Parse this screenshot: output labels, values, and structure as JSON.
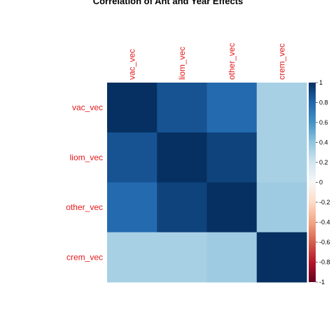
{
  "chart_data": {
    "type": "heatmap",
    "title": "Correlation of Ant and Year Effects",
    "row_labels": [
      "vac_vec",
      "liom_vec",
      "other_vec",
      "crem_vec"
    ],
    "col_labels": [
      "vac_vec",
      "liom_vec",
      "other_vec",
      "crem_vec"
    ],
    "label_color": "#e31a1c",
    "values": [
      [
        1.0,
        0.87,
        0.78,
        0.33
      ],
      [
        0.87,
        1.0,
        0.93,
        0.33
      ],
      [
        0.78,
        0.93,
        1.0,
        0.36
      ],
      [
        0.33,
        0.33,
        0.36,
        1.0
      ]
    ],
    "legend": {
      "range": [
        -1,
        1
      ],
      "ticks": [
        "1",
        "0.8",
        "0.6",
        "0.4",
        "0.2",
        "0",
        "-0.2",
        "-0.4",
        "-0.6",
        "-0.8",
        "-1"
      ],
      "placement": "right"
    },
    "color_scale": {
      "low": "#67001f",
      "mid": "#f7f7f7",
      "high": "#053061",
      "stops": [
        "#67001f",
        "#b2182b",
        "#d6604d",
        "#f4a582",
        "#fddbc7",
        "#f7f7f7",
        "#d1e5f0",
        "#92c5de",
        "#4393c3",
        "#2166ac",
        "#053061"
      ]
    },
    "grid": false
  }
}
